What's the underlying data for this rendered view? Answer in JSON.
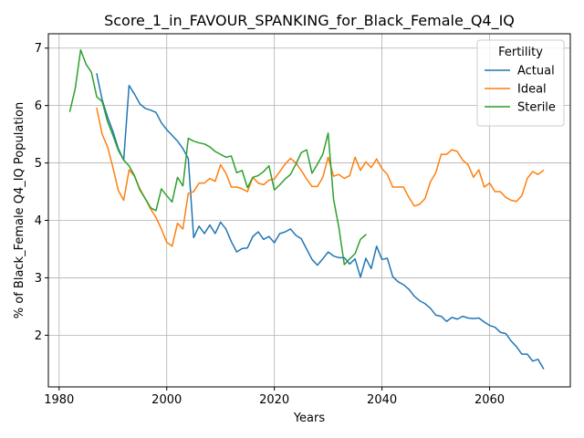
{
  "chart_data": {
    "type": "line",
    "title": "Score_1_in_FAVOUR_SPANKING_for_Black_Female_Q4_IQ",
    "xlabel": "Years",
    "ylabel": "% of Black_Female Q4_IQ Population",
    "xlim": [
      1978,
      2075
    ],
    "ylim": [
      1.1,
      7.25
    ],
    "xticks": [
      1980,
      2000,
      2020,
      2040,
      2060
    ],
    "yticks": [
      2,
      3,
      4,
      5,
      6,
      7
    ],
    "grid": true,
    "legend": {
      "title": "Fertility",
      "placement": "top-right"
    },
    "series": [
      {
        "name": "Actual",
        "color": "#1f77b4",
        "points": [
          [
            1987,
            6.55
          ],
          [
            1988,
            6.1
          ],
          [
            1989,
            5.8
          ],
          [
            1990,
            5.55
          ],
          [
            1991,
            5.25
          ],
          [
            1992,
            5.05
          ],
          [
            1993,
            6.35
          ],
          [
            1994,
            6.2
          ],
          [
            1995,
            6.03
          ],
          [
            1996,
            5.95
          ],
          [
            1997,
            5.92
          ],
          [
            1998,
            5.88
          ],
          [
            1999,
            5.7
          ],
          [
            2000,
            5.58
          ],
          [
            2001,
            5.48
          ],
          [
            2002,
            5.38
          ],
          [
            2003,
            5.25
          ],
          [
            2004,
            5.08
          ],
          [
            2005,
            3.7
          ],
          [
            2006,
            3.9
          ],
          [
            2007,
            3.77
          ],
          [
            2008,
            3.92
          ],
          [
            2009,
            3.77
          ],
          [
            2010,
            3.97
          ],
          [
            2011,
            3.85
          ],
          [
            2012,
            3.63
          ],
          [
            2013,
            3.45
          ],
          [
            2014,
            3.51
          ],
          [
            2015,
            3.52
          ],
          [
            2016,
            3.72
          ],
          [
            2017,
            3.8
          ],
          [
            2018,
            3.67
          ],
          [
            2019,
            3.72
          ],
          [
            2020,
            3.61
          ],
          [
            2021,
            3.77
          ],
          [
            2022,
            3.8
          ],
          [
            2023,
            3.85
          ],
          [
            2024,
            3.74
          ],
          [
            2025,
            3.68
          ],
          [
            2026,
            3.5
          ],
          [
            2027,
            3.32
          ],
          [
            2028,
            3.22
          ],
          [
            2029,
            3.33
          ],
          [
            2030,
            3.45
          ],
          [
            2031,
            3.38
          ],
          [
            2032,
            3.35
          ],
          [
            2033,
            3.35
          ],
          [
            2034,
            3.24
          ],
          [
            2035,
            3.33
          ],
          [
            2036,
            3.01
          ],
          [
            2037,
            3.34
          ],
          [
            2038,
            3.16
          ],
          [
            2039,
            3.55
          ],
          [
            2040,
            3.32
          ],
          [
            2041,
            3.34
          ],
          [
            2042,
            3.02
          ],
          [
            2043,
            2.93
          ],
          [
            2044,
            2.88
          ],
          [
            2045,
            2.8
          ],
          [
            2046,
            2.68
          ],
          [
            2047,
            2.6
          ],
          [
            2048,
            2.55
          ],
          [
            2049,
            2.47
          ],
          [
            2050,
            2.35
          ],
          [
            2051,
            2.33
          ],
          [
            2052,
            2.24
          ],
          [
            2053,
            2.31
          ],
          [
            2054,
            2.28
          ],
          [
            2055,
            2.33
          ],
          [
            2056,
            2.3
          ],
          [
            2057,
            2.29
          ],
          [
            2058,
            2.3
          ],
          [
            2059,
            2.23
          ],
          [
            2060,
            2.17
          ],
          [
            2061,
            2.14
          ],
          [
            2062,
            2.05
          ],
          [
            2063,
            2.03
          ],
          [
            2064,
            1.9
          ],
          [
            2065,
            1.8
          ],
          [
            2066,
            1.67
          ],
          [
            2067,
            1.67
          ],
          [
            2068,
            1.55
          ],
          [
            2069,
            1.58
          ],
          [
            2070,
            1.42
          ]
        ]
      },
      {
        "name": "Ideal",
        "color": "#ff7f0e",
        "points": [
          [
            1987,
            5.95
          ],
          [
            1988,
            5.5
          ],
          [
            1989,
            5.28
          ],
          [
            1990,
            4.92
          ],
          [
            1991,
            4.52
          ],
          [
            1992,
            4.35
          ],
          [
            1993,
            4.88
          ],
          [
            1994,
            4.77
          ],
          [
            1995,
            4.55
          ],
          [
            1996,
            4.38
          ],
          [
            1997,
            4.2
          ],
          [
            1998,
            4.05
          ],
          [
            1999,
            3.85
          ],
          [
            2000,
            3.62
          ],
          [
            2001,
            3.55
          ],
          [
            2002,
            3.95
          ],
          [
            2003,
            3.85
          ],
          [
            2004,
            4.47
          ],
          [
            2005,
            4.5
          ],
          [
            2006,
            4.65
          ],
          [
            2007,
            4.65
          ],
          [
            2008,
            4.73
          ],
          [
            2009,
            4.68
          ],
          [
            2010,
            4.97
          ],
          [
            2011,
            4.82
          ],
          [
            2012,
            4.58
          ],
          [
            2013,
            4.58
          ],
          [
            2014,
            4.55
          ],
          [
            2015,
            4.5
          ],
          [
            2016,
            4.75
          ],
          [
            2017,
            4.65
          ],
          [
            2018,
            4.62
          ],
          [
            2019,
            4.7
          ],
          [
            2020,
            4.72
          ],
          [
            2021,
            4.85
          ],
          [
            2022,
            4.98
          ],
          [
            2023,
            5.08
          ],
          [
            2024,
            5.0
          ],
          [
            2025,
            4.87
          ],
          [
            2026,
            4.72
          ],
          [
            2027,
            4.59
          ],
          [
            2028,
            4.59
          ],
          [
            2029,
            4.75
          ],
          [
            2030,
            5.1
          ],
          [
            2031,
            4.77
          ],
          [
            2032,
            4.8
          ],
          [
            2033,
            4.73
          ],
          [
            2034,
            4.78
          ],
          [
            2035,
            5.1
          ],
          [
            2036,
            4.87
          ],
          [
            2037,
            5.02
          ],
          [
            2038,
            4.92
          ],
          [
            2039,
            5.07
          ],
          [
            2040,
            4.9
          ],
          [
            2041,
            4.8
          ],
          [
            2042,
            4.58
          ],
          [
            2043,
            4.58
          ],
          [
            2044,
            4.58
          ],
          [
            2045,
            4.4
          ],
          [
            2046,
            4.25
          ],
          [
            2047,
            4.28
          ],
          [
            2048,
            4.38
          ],
          [
            2049,
            4.67
          ],
          [
            2050,
            4.83
          ],
          [
            2051,
            5.15
          ],
          [
            2052,
            5.15
          ],
          [
            2053,
            5.23
          ],
          [
            2054,
            5.2
          ],
          [
            2055,
            5.05
          ],
          [
            2056,
            4.97
          ],
          [
            2057,
            4.75
          ],
          [
            2058,
            4.88
          ],
          [
            2059,
            4.58
          ],
          [
            2060,
            4.65
          ],
          [
            2061,
            4.5
          ],
          [
            2062,
            4.5
          ],
          [
            2063,
            4.4
          ],
          [
            2064,
            4.35
          ],
          [
            2065,
            4.33
          ],
          [
            2066,
            4.43
          ],
          [
            2067,
            4.73
          ],
          [
            2068,
            4.85
          ],
          [
            2069,
            4.8
          ],
          [
            2070,
            4.87
          ]
        ]
      },
      {
        "name": "Sterile",
        "color": "#2ca02c",
        "points": [
          [
            1982,
            5.9
          ],
          [
            1983,
            6.3
          ],
          [
            1984,
            6.97
          ],
          [
            1985,
            6.72
          ],
          [
            1986,
            6.58
          ],
          [
            1987,
            6.15
          ],
          [
            1988,
            6.07
          ],
          [
            1989,
            5.72
          ],
          [
            1990,
            5.48
          ],
          [
            1991,
            5.22
          ],
          [
            1992,
            5.05
          ],
          [
            1993,
            4.95
          ],
          [
            1994,
            4.78
          ],
          [
            1995,
            4.53
          ],
          [
            1996,
            4.38
          ],
          [
            1997,
            4.22
          ],
          [
            1998,
            4.17
          ],
          [
            1999,
            4.55
          ],
          [
            2000,
            4.43
          ],
          [
            2001,
            4.32
          ],
          [
            2002,
            4.75
          ],
          [
            2003,
            4.6
          ],
          [
            2004,
            5.43
          ],
          [
            2005,
            5.38
          ],
          [
            2006,
            5.35
          ],
          [
            2007,
            5.33
          ],
          [
            2008,
            5.28
          ],
          [
            2009,
            5.2
          ],
          [
            2010,
            5.15
          ],
          [
            2011,
            5.1
          ],
          [
            2012,
            5.12
          ],
          [
            2013,
            4.83
          ],
          [
            2014,
            4.87
          ],
          [
            2015,
            4.57
          ],
          [
            2016,
            4.75
          ],
          [
            2017,
            4.78
          ],
          [
            2018,
            4.85
          ],
          [
            2019,
            4.95
          ],
          [
            2020,
            4.53
          ],
          [
            2021,
            4.62
          ],
          [
            2022,
            4.72
          ],
          [
            2023,
            4.8
          ],
          [
            2024,
            4.98
          ],
          [
            2025,
            5.18
          ],
          [
            2026,
            5.23
          ],
          [
            2027,
            4.82
          ],
          [
            2028,
            4.98
          ],
          [
            2029,
            5.15
          ],
          [
            2030,
            5.52
          ],
          [
            2031,
            4.37
          ],
          [
            2032,
            3.87
          ],
          [
            2033,
            3.23
          ],
          [
            2034,
            3.33
          ],
          [
            2035,
            3.42
          ],
          [
            2036,
            3.67
          ],
          [
            2037,
            3.75
          ]
        ]
      }
    ]
  }
}
